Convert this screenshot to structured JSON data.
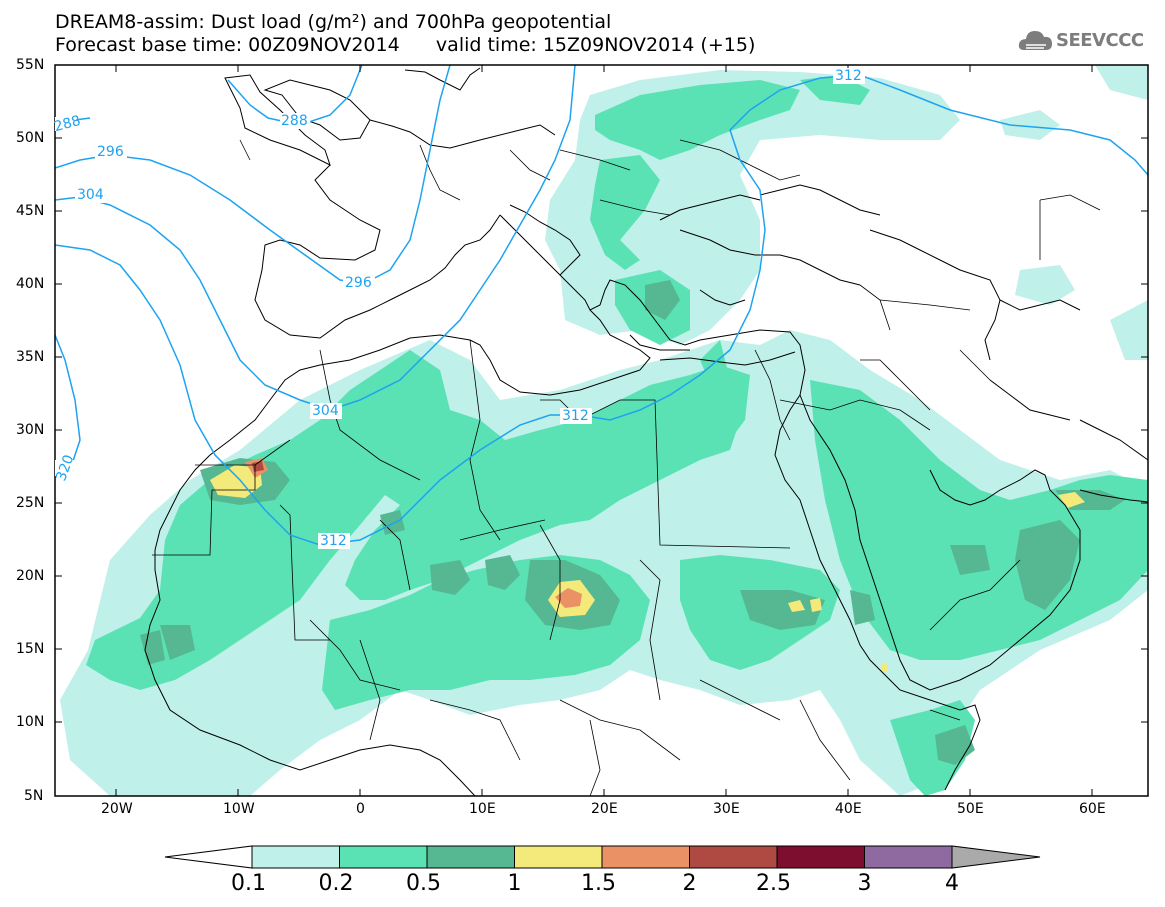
{
  "title": {
    "line1": "DREAM8-assim: Dust load (g/m²) and 700hPa geopotential",
    "line2": "Forecast base time: 00Z09NOV2014      valid time: 15Z09NOV2014 (+15)"
  },
  "logo": {
    "text": "SEEVCCC",
    "icon": "cloud-logo-icon"
  },
  "axes": {
    "lat_labels": [
      "55N",
      "50N",
      "45N",
      "40N",
      "35N",
      "30N",
      "25N",
      "20N",
      "15N",
      "10N",
      "5N"
    ],
    "lon_labels": [
      "20W",
      "10W",
      "0",
      "10E",
      "20E",
      "30E",
      "40E",
      "50E",
      "60E"
    ]
  },
  "contours": {
    "line_color": "#1ea3f0",
    "labels": [
      "288",
      "296",
      "304",
      "296",
      "304",
      "312",
      "312",
      "312",
      "320",
      "288"
    ]
  },
  "legend": {
    "bins": [
      {
        "color": "#bff0ea"
      },
      {
        "color": "#5be2b4"
      },
      {
        "color": "#55b892"
      },
      {
        "color": "#f3ea7b"
      },
      {
        "color": "#ea9265"
      },
      {
        "color": "#ae4a41"
      },
      {
        "color": "#7e0e30"
      },
      {
        "color": "#8e6aa0"
      }
    ],
    "low_color": "#ffffff",
    "high_color": "#aaaaaa",
    "labels": [
      "0.1",
      "0.2",
      "0.5",
      "1",
      "1.5",
      "2",
      "2.5",
      "3",
      "4"
    ]
  }
}
